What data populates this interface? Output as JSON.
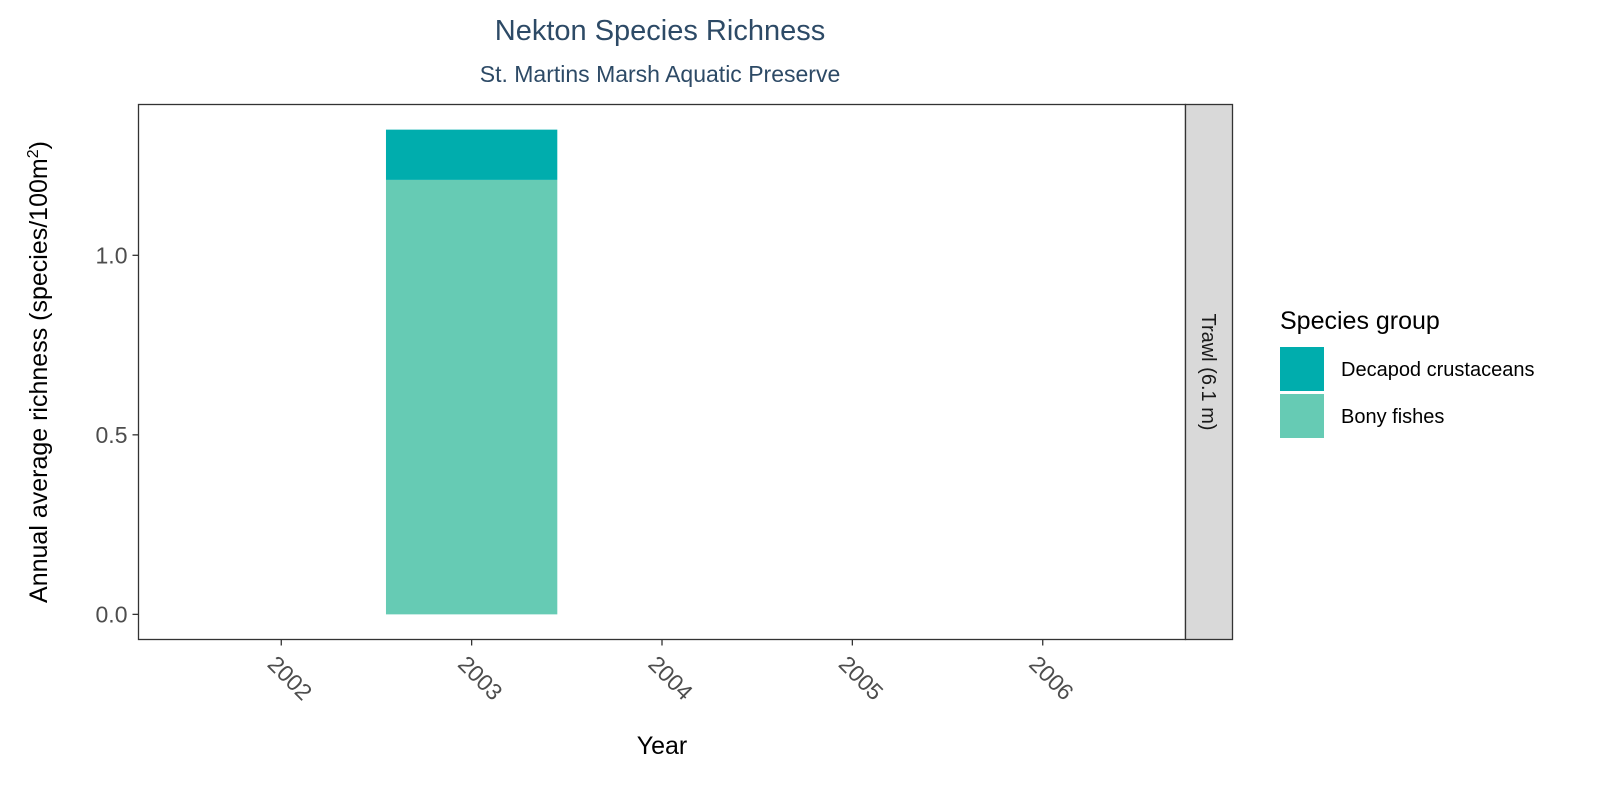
{
  "chart_data": {
    "type": "bar",
    "stacked": true,
    "title": "Nekton Species Richness",
    "subtitle": "St. Martins Marsh Aquatic Preserve",
    "xlabel": "Year",
    "ylabel_main": "Annual average richness (species/100m",
    "ylabel_sup": "2",
    "ylabel_close": ")",
    "categories": [
      "2002",
      "2003",
      "2004",
      "2005",
      "2006"
    ],
    "xlim": [
      2001.25,
      2006.75
    ],
    "ylim": [
      -0.07,
      1.42
    ],
    "yticks": [
      0.0,
      0.5,
      1.0
    ],
    "ytick_labels": [
      "0.0",
      "0.5",
      "1.0"
    ],
    "facet_label": "Trawl (6.1 m)",
    "grid": false,
    "legend": {
      "title": "Species group",
      "position": "right",
      "entries": [
        {
          "label": "Decapod crustaceans",
          "color": "#00adad"
        },
        {
          "label": "Bony fishes",
          "color": "#66cbb4"
        }
      ]
    },
    "series": [
      {
        "name": "Bony fishes",
        "color": "#66cbb4",
        "values": [
          null,
          1.21,
          null,
          null,
          null
        ]
      },
      {
        "name": "Decapod crustaceans",
        "color": "#00adad",
        "values": [
          null,
          0.14,
          null,
          null,
          null
        ]
      }
    ]
  }
}
